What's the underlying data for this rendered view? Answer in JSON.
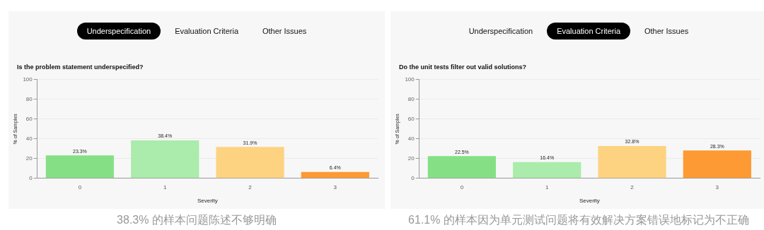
{
  "chart_data": [
    {
      "type": "bar",
      "title": "Is the problem statement underspecified?",
      "xlabel": "Severity",
      "ylabel": "% of Samples",
      "categories": [
        "0",
        "1",
        "2",
        "3"
      ],
      "values": [
        23.3,
        38.4,
        31.9,
        6.4
      ],
      "colors": [
        "#85e085",
        "#abebab",
        "#fdd381",
        "#fd9a33"
      ],
      "value_labels": [
        "23.3%",
        "38.4%",
        "31.9%",
        "6.4%"
      ],
      "ylim": [
        0,
        100
      ],
      "yticks": [
        0,
        20,
        40,
        60,
        80,
        100
      ],
      "grid": "y",
      "legend": false,
      "annotations": [
        "Underspecification",
        "Evaluation Criteria",
        "Other Issues",
        "38.3% 的样本问题陈述不够明确"
      ]
    },
    {
      "type": "bar",
      "title": "Do the unit tests filter out valid solutions?",
      "xlabel": "Severity",
      "ylabel": "% of Samples",
      "categories": [
        "0",
        "1",
        "2",
        "3"
      ],
      "values": [
        22.5,
        16.4,
        32.8,
        28.3
      ],
      "colors": [
        "#85e085",
        "#abebab",
        "#fdd381",
        "#fd9a33"
      ],
      "value_labels": [
        "22.5%",
        "16.4%",
        "32.8%",
        "28.3%"
      ],
      "ylim": [
        0,
        100
      ],
      "yticks": [
        0,
        20,
        40,
        60,
        80,
        100
      ],
      "grid": "y",
      "legend": false,
      "annotations": [
        "Underspecification",
        "Evaluation Criteria",
        "Other Issues",
        "61.1% 的样本因为单元测试问题将有效解决方案错误地标记为不正确"
      ]
    }
  ]
}
